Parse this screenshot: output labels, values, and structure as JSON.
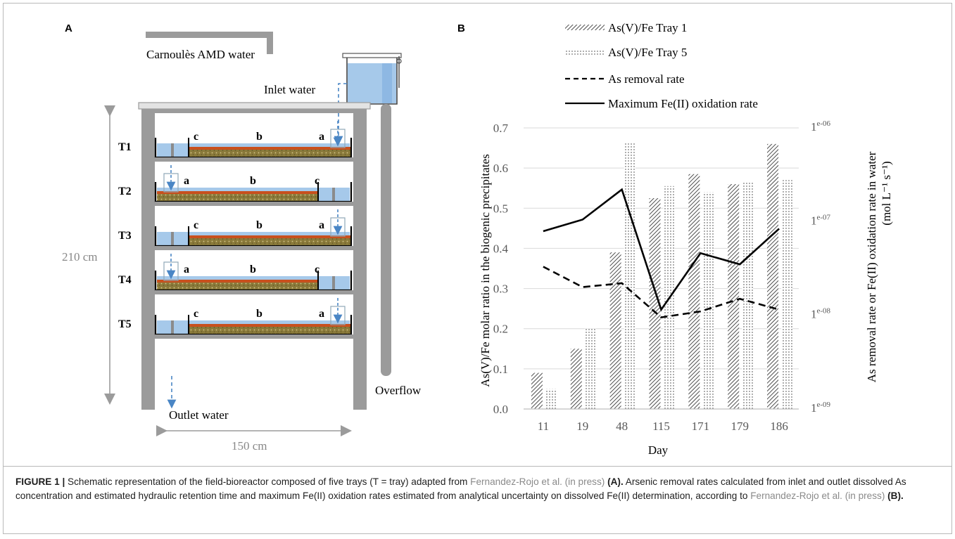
{
  "figure": {
    "panel_a_letter": "A",
    "panel_b_letter": "B",
    "caption": {
      "label": "FIGURE 1 |",
      "text1": " Schematic representation of the field-bioreactor composed of five trays (T = tray) adapted from ",
      "cite1": "Fernandez-Rojo et al. (in press)",
      "bold1": " (A).",
      "text2": " Arsenic removal rates calculated from inlet and outlet dissolved As concentration and estimated hydraulic retention time and maximum Fe(II) oxidation rates estimated from analytical uncertainty on dissolved Fe(II) determination, according to ",
      "cite2": "Fernandez-Rojo et al. (in press)",
      "bold2": " (B)."
    }
  },
  "schematic": {
    "source_label": "Carnoulès AMD water",
    "inlet_label": "Inlet water",
    "outlet_label": "Outlet water",
    "overflow_label": "Overflow",
    "height_label": "210 cm",
    "width_label": "150 cm",
    "trays": [
      {
        "name": "T1",
        "zones": [
          "c",
          "b",
          "a"
        ]
      },
      {
        "name": "T2",
        "zones": [
          "a",
          "b",
          "c"
        ]
      },
      {
        "name": "T3",
        "zones": [
          "c",
          "b",
          "a"
        ]
      },
      {
        "name": "T4",
        "zones": [
          "a",
          "b",
          "c"
        ]
      },
      {
        "name": "T5",
        "zones": [
          "c",
          "b",
          "a"
        ]
      }
    ],
    "colors": {
      "water": "#a6c9ea",
      "sediment": "#8a7a3a",
      "oxide_layer": "#c8501e",
      "frame": "#9b9b9b",
      "arrow": "#4a86c5"
    }
  },
  "chart_data": {
    "type": "bar",
    "categories": [
      "11",
      "19",
      "48",
      "115",
      "171",
      "179",
      "186"
    ],
    "xlabel": "Day",
    "ylabel": "As(V)/Fe molar ratio in the biogenic precipitates",
    "ylabel_right_line1": "As removal rate or Fe(II) oxidation rate in water",
    "ylabel_right_line2": "(mol L⁻¹ s⁻¹)",
    "ylim": [
      0,
      0.7
    ],
    "yticks": [
      "0.0",
      "0.1",
      "0.2",
      "0.3",
      "0.4",
      "0.5",
      "0.6",
      "0.7"
    ],
    "y2_scale": "log",
    "y2lim": [
      1e-09,
      1e-06
    ],
    "y2ticks": [
      "1e-09",
      "1e-08",
      "1e-07",
      "1e-06"
    ],
    "grid": true,
    "legend_position": "top",
    "series": [
      {
        "name": "As(V)/Fe Tray 1",
        "kind": "bar",
        "pattern": "diagonal-hatch",
        "values": [
          0.09,
          0.15,
          0.39,
          0.525,
          0.585,
          0.56,
          0.66
        ]
      },
      {
        "name": "As(V)/Fe Tray 5",
        "kind": "bar",
        "pattern": "dots",
        "values": [
          0.05,
          0.2,
          0.665,
          0.555,
          0.54,
          0.565,
          0.57
        ]
      },
      {
        "name": "As removal rate",
        "kind": "line",
        "style": "dashed",
        "axis": "right",
        "values": [
          3.3e-08,
          2e-08,
          2.2e-08,
          9.5e-09,
          1.1e-08,
          1.5e-08,
          1.15e-08
        ]
      },
      {
        "name": "Maximum Fe(II) oxidation rate",
        "kind": "line",
        "style": "solid",
        "axis": "right",
        "values": [
          7.9e-08,
          1.05e-07,
          2.2e-07,
          1.15e-08,
          4.6e-08,
          3.5e-08,
          8.4e-08
        ]
      }
    ]
  }
}
